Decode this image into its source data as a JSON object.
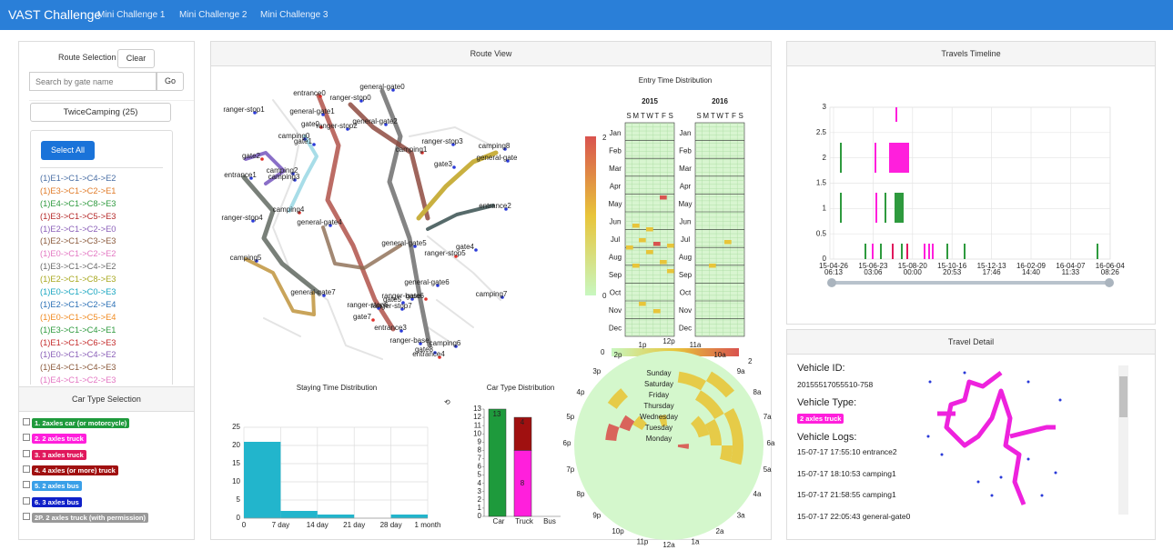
{
  "navbar": {
    "brand": "VAST Challenge",
    "menus": [
      "Mini Challenge 1",
      "Mini Challenge 2",
      "Mini Challenge 3"
    ]
  },
  "route_selection": {
    "title": "Route Selection",
    "clear_button": "Clear",
    "search_placeholder": "Search by gate name",
    "go_button": "Go",
    "group": "TwiceCamping (25)",
    "select_all": "Select All",
    "routes": [
      {
        "label": "(1)E1->C1->C4->E2",
        "color": "#4a6fa5"
      },
      {
        "label": "(1)E3->C1->C2->E1",
        "color": "#e07b28"
      },
      {
        "label": "(1)E4->C1->C8->E3",
        "color": "#2e9a3e"
      },
      {
        "label": "(1)E3->C1->C5->E3",
        "color": "#b52a2a"
      },
      {
        "label": "(1)E2->C1->C2->E0",
        "color": "#8a5fb8"
      },
      {
        "label": "(1)E2->C1->C3->E3",
        "color": "#8b5a3c"
      },
      {
        "label": "(1)E0->C1->C2->E2",
        "color": "#e377c2"
      },
      {
        "label": "(1)E3->C1->C4->E2",
        "color": "#6b6b6b"
      },
      {
        "label": "(1)E2->C1->C8->E3",
        "color": "#a8a820"
      },
      {
        "label": "(1)E0->C1->C0->E3",
        "color": "#17a5c0"
      },
      {
        "label": "(1)E2->C1->C2->E4",
        "color": "#2a6fb5"
      },
      {
        "label": "(1)E0->C1->C5->E4",
        "color": "#f08a20"
      },
      {
        "label": "(1)E3->C1->C4->E1",
        "color": "#2e9a3e"
      },
      {
        "label": "(1)E1->C1->C6->E3",
        "color": "#c42a2a"
      },
      {
        "label": "(1)E0->C1->C4->E2",
        "color": "#8a5fb8"
      },
      {
        "label": "(1)E4->C1->C4->E3",
        "color": "#8b5a3c"
      },
      {
        "label": "(1)E4->C1->C2->E3",
        "color": "#e377c2"
      }
    ]
  },
  "car_type_selection": {
    "title": "Car Type Selection",
    "types": [
      {
        "label": "1. 2axles car (or motorcycle)",
        "color": "#1e9a3c"
      },
      {
        "label": "2. 2 axles truck",
        "color": "#ff1fdc"
      },
      {
        "label": "3. 3 axles truck",
        "color": "#e0185c"
      },
      {
        "label": "4. 4 axles (or more) truck",
        "color": "#a01010"
      },
      {
        "label": "5. 2 axles bus",
        "color": "#3aa0e8"
      },
      {
        "label": "6. 3 axles bus",
        "color": "#1020c8"
      },
      {
        "label": "2P. 2 axles truck (with permission)",
        "color": "#999999"
      }
    ]
  },
  "route_view": {
    "title": "Route View",
    "places": [
      "entrance0",
      "ranger-stop0",
      "general-gate0",
      "ranger-stop1",
      "general-gate1",
      "gate0",
      "ranger-stop2",
      "general-gate2",
      "camping0",
      "gate1",
      "camping1",
      "ranger-stop3",
      "camping8",
      "general-gate",
      "gate3",
      "gate2",
      "camping2",
      "entrance1",
      "camping3",
      "entrance2",
      "camping4",
      "ranger-stop4",
      "general-gate4",
      "general-gate5",
      "gate4",
      "ranger-stop5",
      "camping5",
      "general-gate6",
      "general-gate7",
      "ranger-base",
      "gate6",
      "camping7",
      "ranger-stop6",
      "gate5",
      "ranger-stop7",
      "gate7",
      "entrance3",
      "ranger-base",
      "camping6",
      "gate8",
      "entrance4"
    ]
  },
  "entry_time": {
    "title": "Entry Time Distribution",
    "years": [
      "2015",
      "2016"
    ],
    "weekdays": [
      "S",
      "M",
      "T",
      "W",
      "T",
      "F",
      "S"
    ],
    "months": [
      "Jan",
      "Feb",
      "Mar",
      "Apr",
      "May",
      "Jun",
      "Jul",
      "Aug",
      "Sep",
      "Oct",
      "Nov",
      "Dec"
    ],
    "color_range": [
      0,
      2
    ]
  },
  "radial": {
    "hours": [
      "12p",
      "1p",
      "2p",
      "3p",
      "4p",
      "5p",
      "6p",
      "7p",
      "8p",
      "9p",
      "10p",
      "11p",
      "12a",
      "1a",
      "2a",
      "3a",
      "4a",
      "5a",
      "6a",
      "7a",
      "8a",
      "9a",
      "10a",
      "11a"
    ],
    "weekdays": [
      "Sunday",
      "Saturday",
      "Friday",
      "Thursday",
      "Wednesday",
      "Tuesday",
      "Monday"
    ],
    "color_range": [
      0,
      2
    ]
  },
  "chart_data": [
    {
      "type": "histogram",
      "title": "Staying Time Distribution",
      "bins": [
        0,
        7,
        14,
        21,
        28,
        35
      ],
      "values": [
        21,
        2,
        1,
        0,
        1
      ],
      "color": "#22b5cc",
      "xlim": [
        0,
        35
      ],
      "xticks": [
        0,
        {
          "value": 7,
          "label": "7 day"
        },
        {
          "value": 14,
          "label": "14 day"
        },
        {
          "value": 21,
          "label": "21 day"
        },
        {
          "value": 28,
          "label": "28 day"
        },
        {
          "value": 35,
          "label": "1 month"
        }
      ],
      "ylim": [
        0,
        25
      ],
      "yticks": [
        0,
        5,
        10,
        15,
        20,
        25
      ],
      "grid": true
    },
    {
      "type": "stacked_bar",
      "title": "Car Type Distribution",
      "categories": [
        "Car",
        "Truck",
        "Bus"
      ],
      "series": [
        {
          "color": "#1e9a3c",
          "values": [
            13,
            0,
            0
          ]
        },
        {
          "color": "#ff1fdc",
          "values": [
            0,
            8,
            0
          ]
        },
        {
          "color": "#a01010",
          "values": [
            0,
            4,
            0
          ]
        }
      ],
      "ylim": [
        0,
        13
      ],
      "yticks": [
        0,
        1,
        2,
        3,
        4,
        5,
        6,
        7,
        8,
        9,
        10,
        11,
        12,
        13
      ]
    },
    {
      "type": "timeline",
      "title": "Travels Timeline",
      "ylim": [
        0,
        3
      ],
      "yticks": [
        0,
        0.5,
        1,
        1.5,
        2,
        2.5,
        3
      ],
      "grid": true,
      "x_tick_labels": [
        {
          "date": "15-04-26",
          "time": "06:13"
        },
        {
          "date": "15-06-23",
          "time": "03:06"
        },
        {
          "date": "15-08-20",
          "time": "00:00"
        },
        {
          "date": "15-10-16",
          "time": "20:53"
        },
        {
          "date": "15-12-13",
          "time": "17:46"
        },
        {
          "date": "16-02-09",
          "time": "14:40"
        },
        {
          "date": "16-04-07",
          "time": "11:33"
        },
        {
          "date": "16-06-04",
          "time": "08:26"
        }
      ]
    }
  ],
  "travel_detail": {
    "title": "Travel Detail",
    "id_label": "Vehicle ID:",
    "id": "20155517055510-758",
    "type_label": "Vehicle Type:",
    "type": "2 axles truck",
    "logs_label": "Vehicle Logs:",
    "logs": [
      "15-07-17 17:55:10 entrance2",
      "15-07-17 18:10:53 camping1",
      "15-07-17 21:58:55 camping1",
      "15-07-17 22:05:43 general-gate0"
    ]
  }
}
